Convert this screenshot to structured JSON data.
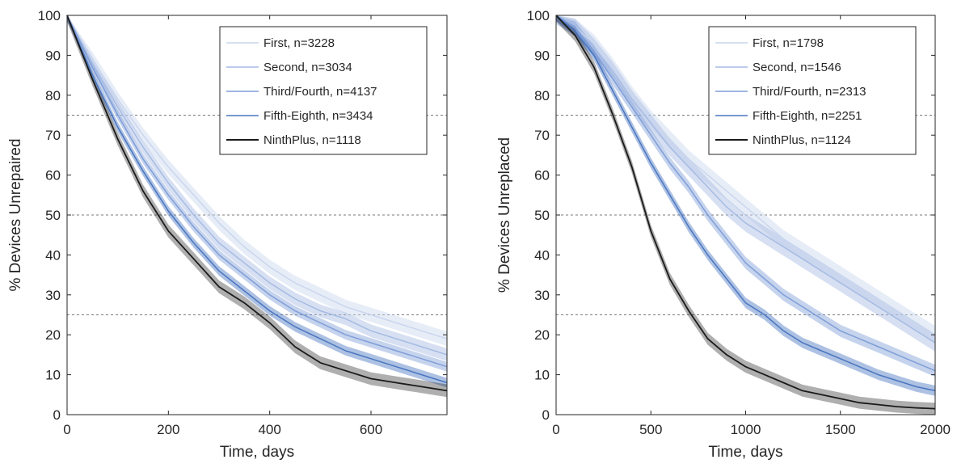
{
  "chart_data": [
    {
      "type": "line",
      "title": "",
      "xlabel": "Time, days",
      "ylabel": "% Devices Unrepaired",
      "xlim": [
        0,
        750
      ],
      "ylim": [
        0,
        100
      ],
      "xticks": [
        0,
        200,
        400,
        600
      ],
      "yticks": [
        0,
        10,
        20,
        30,
        40,
        50,
        60,
        70,
        80,
        90,
        100
      ],
      "reference_lines": [
        75,
        50,
        25
      ],
      "grid": false,
      "legend_position": "top-right",
      "confidence_bands": true,
      "series": [
        {
          "name": "First, n=3228",
          "color": "#c9d6ee",
          "band_half_width": 1.8,
          "x": [
            0,
            50,
            100,
            150,
            200,
            250,
            300,
            350,
            400,
            450,
            500,
            550,
            600,
            650,
            700,
            750
          ],
          "y": [
            100,
            89,
            79,
            70,
            62,
            55,
            48,
            42,
            37,
            33,
            30,
            27,
            25,
            23,
            21,
            19
          ]
        },
        {
          "name": "Second, n=3034",
          "color": "#a6bbe3",
          "band_half_width": 1.6,
          "x": [
            0,
            50,
            100,
            150,
            200,
            250,
            300,
            350,
            400,
            450,
            500,
            550,
            600,
            650,
            700,
            750
          ],
          "y": [
            100,
            88,
            77,
            67,
            58,
            50,
            43,
            38,
            33,
            29,
            26,
            24,
            21,
            19,
            17,
            15
          ]
        },
        {
          "name": "Third/Fourth, n=4137",
          "color": "#7f9ed8",
          "band_half_width": 1.2,
          "x": [
            0,
            50,
            100,
            150,
            200,
            250,
            300,
            350,
            400,
            450,
            500,
            550,
            600,
            650,
            700,
            750
          ],
          "y": [
            100,
            87,
            75,
            64,
            55,
            47,
            40,
            35,
            30,
            26,
            23,
            20,
            18,
            16,
            14,
            12
          ]
        },
        {
          "name": "Fifth-Eighth, n=3434",
          "color": "#4a76c0",
          "band_half_width": 1.2,
          "x": [
            0,
            50,
            100,
            150,
            200,
            250,
            300,
            350,
            400,
            450,
            500,
            550,
            600,
            650,
            700,
            750
          ],
          "y": [
            100,
            85,
            72,
            61,
            51,
            43,
            36,
            31,
            26,
            22,
            19,
            16,
            14,
            12,
            10,
            8
          ]
        },
        {
          "name": "NinthPlus, n=1118",
          "color": "#1a1a1a",
          "band_half_width": 1.6,
          "x": [
            0,
            50,
            100,
            150,
            200,
            250,
            300,
            350,
            400,
            450,
            500,
            550,
            600,
            650,
            700,
            750
          ],
          "y": [
            100,
            84,
            69,
            56,
            46,
            39,
            32,
            28,
            23,
            17,
            13,
            11,
            9,
            8,
            7,
            6
          ]
        }
      ]
    },
    {
      "type": "line",
      "title": "",
      "xlabel": "Time, days",
      "ylabel": "% Devices Unreplaced",
      "xlim": [
        0,
        2000
      ],
      "ylim": [
        0,
        100
      ],
      "xticks": [
        0,
        500,
        1000,
        1500,
        2000
      ],
      "yticks": [
        0,
        10,
        20,
        30,
        40,
        50,
        60,
        70,
        80,
        90,
        100
      ],
      "reference_lines": [
        75,
        50,
        25
      ],
      "grid": false,
      "legend_position": "top-right",
      "confidence_bands": true,
      "series": [
        {
          "name": "First, n=1798",
          "color": "#c9d6ee",
          "band_half_width": 2.2,
          "x": [
            0,
            100,
            200,
            300,
            400,
            500,
            600,
            700,
            800,
            900,
            1000,
            1100,
            1200,
            1300,
            1400,
            1500,
            1600,
            1700,
            1800,
            1900,
            2000
          ],
          "y": [
            100,
            97,
            93,
            87,
            80,
            74,
            69,
            64,
            60,
            56,
            52,
            48,
            44,
            41,
            38,
            35,
            32,
            29,
            26,
            23,
            20
          ]
        },
        {
          "name": "Second, n=1546",
          "color": "#a6bbe3",
          "band_half_width": 2.2,
          "x": [
            0,
            100,
            200,
            300,
            400,
            500,
            600,
            700,
            800,
            900,
            1000,
            1100,
            1200,
            1300,
            1400,
            1500,
            1600,
            1700,
            1800,
            1900,
            2000
          ],
          "y": [
            100,
            97,
            92,
            86,
            79,
            73,
            67,
            62,
            57,
            52,
            48,
            45,
            42,
            39,
            36,
            33,
            30,
            27,
            24,
            21,
            18
          ]
        },
        {
          "name": "Third/Fourth, n=2313",
          "color": "#7f9ed8",
          "band_half_width": 1.5,
          "x": [
            0,
            100,
            200,
            300,
            400,
            500,
            600,
            700,
            800,
            900,
            1000,
            1100,
            1200,
            1300,
            1400,
            1500,
            1600,
            1700,
            1800,
            1900,
            2000
          ],
          "y": [
            100,
            97,
            91,
            84,
            77,
            70,
            63,
            57,
            50,
            44,
            38,
            34,
            30,
            27,
            24,
            21,
            19,
            17,
            15,
            13,
            11
          ]
        },
        {
          "name": "Fifth-Eighth, n=2251",
          "color": "#4a76c0",
          "band_half_width": 1.3,
          "x": [
            0,
            100,
            200,
            300,
            400,
            500,
            600,
            700,
            800,
            900,
            1000,
            1100,
            1200,
            1300,
            1400,
            1500,
            1600,
            1700,
            1800,
            1900,
            2000
          ],
          "y": [
            100,
            96,
            90,
            81,
            72,
            63,
            55,
            47,
            40,
            34,
            28,
            25,
            21,
            18,
            16,
            14,
            12,
            10,
            8.5,
            7,
            6
          ]
        },
        {
          "name": "NinthPlus, n=1124",
          "color": "#1a1a1a",
          "band_half_width": 1.5,
          "x": [
            0,
            100,
            200,
            300,
            400,
            500,
            600,
            700,
            800,
            900,
            1000,
            1100,
            1200,
            1300,
            1400,
            1500,
            1600,
            1700,
            1800,
            1900,
            2000
          ],
          "y": [
            100,
            95,
            87,
            75,
            62,
            46,
            34,
            26,
            19,
            15,
            12,
            10,
            8,
            6,
            5,
            4,
            3,
            2.5,
            2,
            1.7,
            1.5
          ]
        }
      ]
    }
  ]
}
